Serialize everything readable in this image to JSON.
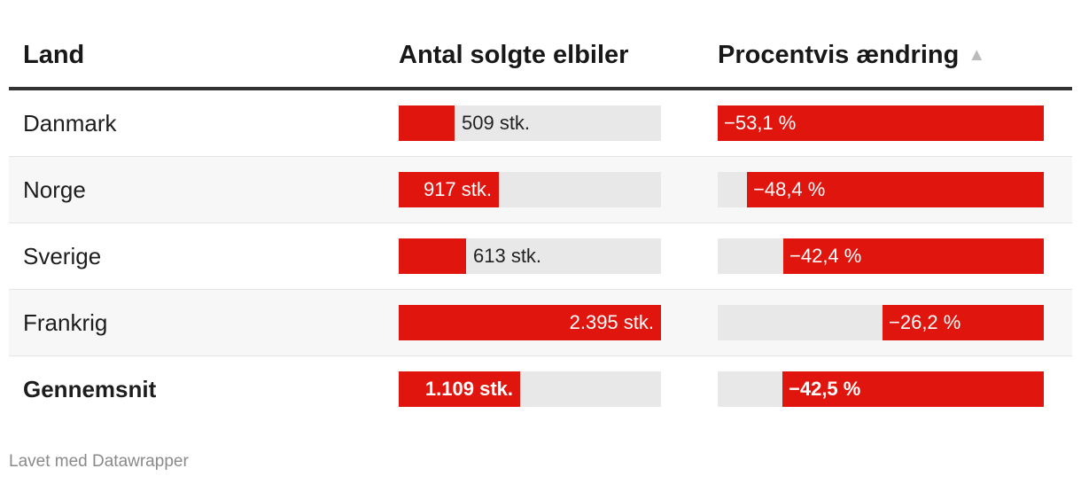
{
  "chart_data": {
    "type": "table",
    "columns": [
      "Land",
      "Antal solgte elbiler",
      "Procentvis ændring"
    ],
    "sort_indicator": "▲",
    "rows": [
      {
        "land": "Danmark",
        "antal": 509,
        "antal_label": "509 stk.",
        "pct": -53.1,
        "pct_label": "−53,1 %",
        "bold": false
      },
      {
        "land": "Norge",
        "antal": 917,
        "antal_label": "917 stk.",
        "pct": -48.4,
        "pct_label": "−48,4 %",
        "bold": false
      },
      {
        "land": "Sverige",
        "antal": 613,
        "antal_label": "613 stk.",
        "pct": -42.4,
        "pct_label": "−42,4 %",
        "bold": false
      },
      {
        "land": "Frankrig",
        "antal": 2395,
        "antal_label": "2.395 stk.",
        "pct": -26.2,
        "pct_label": "−26,2 %",
        "bold": false
      },
      {
        "land": "Gennemsnit",
        "antal": 1109,
        "antal_label": "1.109 stk.",
        "pct": -42.5,
        "pct_label": "−42,5 %",
        "bold": true
      }
    ],
    "antal_range": [
      0,
      2395
    ],
    "pct_range": [
      -53.1,
      0
    ]
  },
  "colors": {
    "bar": "#e0160e",
    "track": "#e8e8e8",
    "header_rule": "#333333"
  },
  "footer": "Lavet med Datawrapper"
}
